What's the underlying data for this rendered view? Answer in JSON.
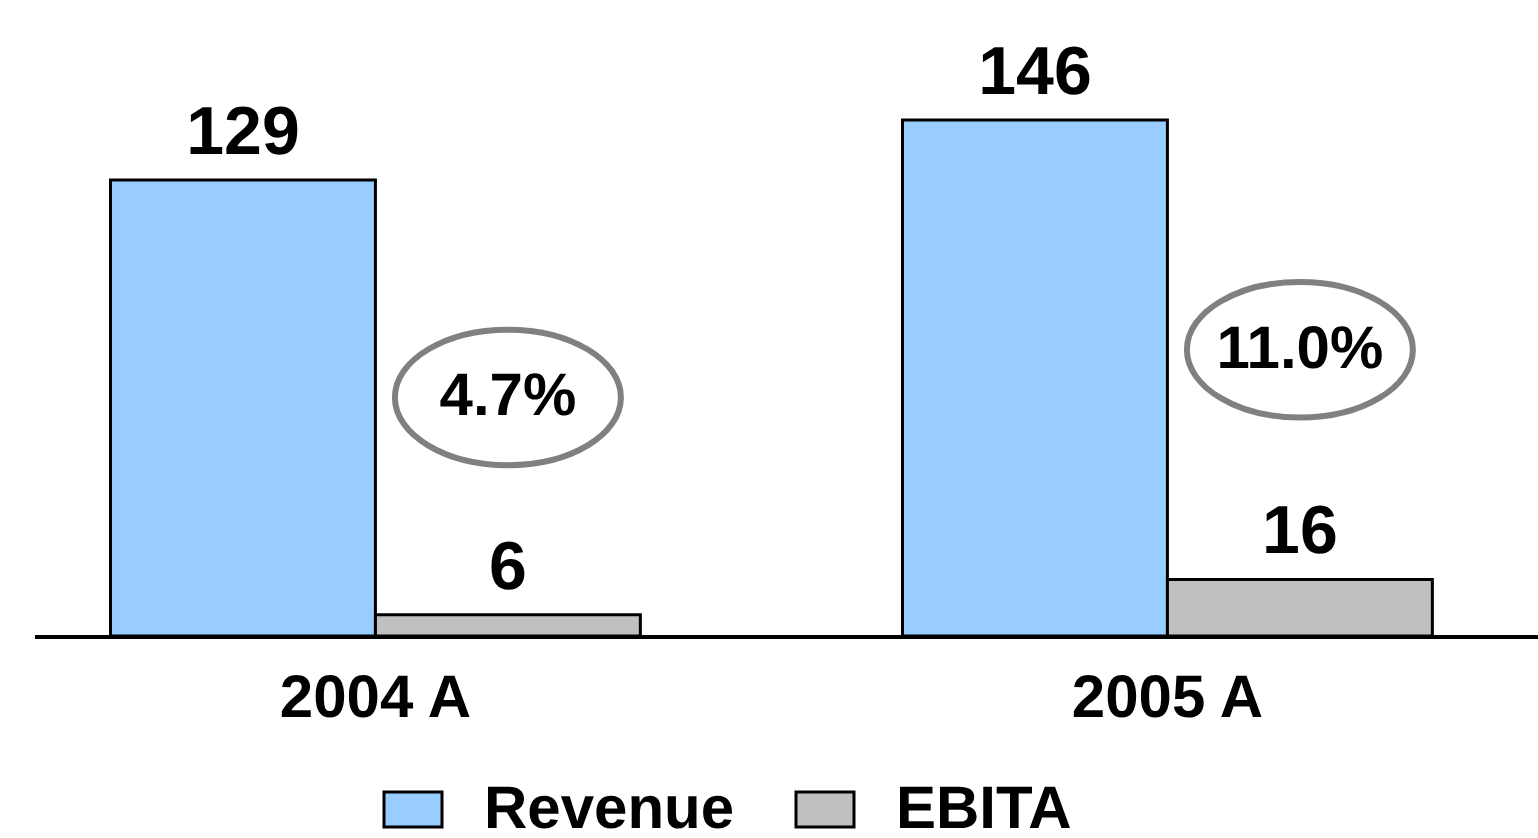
{
  "chart_data": {
    "type": "bar",
    "categories": [
      "2004 A",
      "2005 A"
    ],
    "series": [
      {
        "name": "Revenue",
        "color": "#99ccff",
        "values": [
          129,
          146
        ]
      },
      {
        "name": "EBITA",
        "color": "#c0c0c0",
        "values": [
          6,
          16
        ]
      }
    ],
    "data_labels": true,
    "legend": "bottom",
    "annotations": [
      "4.7%",
      "11.0%"
    ]
  }
}
